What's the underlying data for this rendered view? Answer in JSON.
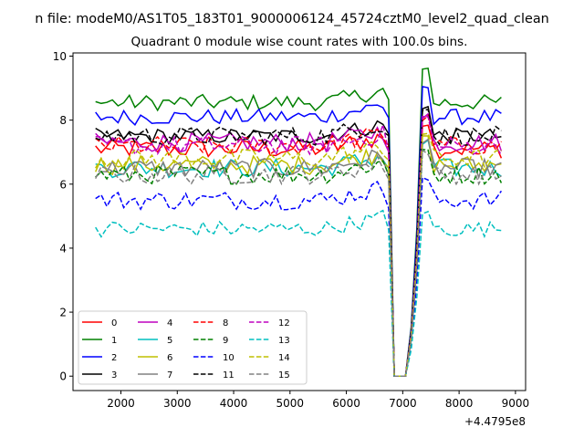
{
  "figure": {
    "suptitle": "n file: modeM0/AS1T05_183T01_9000006124_45724cztM0_level2_quad_clean",
    "background": "#ffffff"
  },
  "chart_data": {
    "type": "line",
    "title": "Quadrant 0 module wise count rates with 100.0s bins.",
    "xlabel": "",
    "ylabel": "",
    "x_offset_label": "+4.4795e8",
    "x_ticks": [
      2000,
      3000,
      4000,
      5000,
      6000,
      7000,
      8000,
      9000
    ],
    "x_tick_labels": [
      "2000",
      "3000",
      "4000",
      "5000",
      "6000",
      "7000",
      "8000",
      "9000"
    ],
    "y_ticks": [
      0,
      2,
      4,
      6,
      8,
      10
    ],
    "y_tick_labels": [
      "0",
      "2",
      "4",
      "6",
      "8",
      "10"
    ],
    "xlim": [
      1150,
      9180
    ],
    "ylim": [
      -0.45,
      10.1
    ],
    "x_start": 1550,
    "x_step": 100,
    "grid": false,
    "legend_position": "lower-left",
    "legend_columns": 4,
    "series": [
      {
        "name": "0",
        "color": "#ff0000",
        "dash": "solid",
        "level": 7.1,
        "noise": 0.3
      },
      {
        "name": "1",
        "color": "#008000",
        "dash": "solid",
        "level": 8.55,
        "noise": 0.25
      },
      {
        "name": "2",
        "color": "#0000ff",
        "dash": "solid",
        "level": 8.1,
        "noise": 0.25
      },
      {
        "name": "3",
        "color": "#000000",
        "dash": "solid",
        "level": 7.5,
        "noise": 0.25
      },
      {
        "name": "4",
        "color": "#bf00bf",
        "dash": "solid",
        "level": 7.3,
        "noise": 0.3
      },
      {
        "name": "5",
        "color": "#00bfbf",
        "dash": "solid",
        "level": 6.5,
        "noise": 0.3
      },
      {
        "name": "6",
        "color": "#bfbf00",
        "dash": "solid",
        "level": 6.6,
        "noise": 0.3
      },
      {
        "name": "7",
        "color": "#808080",
        "dash": "solid",
        "level": 6.5,
        "noise": 0.3
      },
      {
        "name": "8",
        "color": "#ff0000",
        "dash": "dashed",
        "level": 7.2,
        "noise": 0.3
      },
      {
        "name": "9",
        "color": "#008000",
        "dash": "dashed",
        "level": 6.3,
        "noise": 0.3
      },
      {
        "name": "10",
        "color": "#0000ff",
        "dash": "dashed",
        "level": 5.5,
        "noise": 0.3
      },
      {
        "name": "11",
        "color": "#000000",
        "dash": "dashed",
        "level": 7.5,
        "noise": 0.3
      },
      {
        "name": "12",
        "color": "#bf00bf",
        "dash": "dashed",
        "level": 7.2,
        "noise": 0.3
      },
      {
        "name": "13",
        "color": "#00bfbf",
        "dash": "dashed",
        "level": 4.6,
        "noise": 0.25
      },
      {
        "name": "14",
        "color": "#bfbf00",
        "dash": "dashed",
        "level": 6.8,
        "noise": 0.3
      },
      {
        "name": "15",
        "color": "#808080",
        "dash": "dashed",
        "level": 6.3,
        "noise": 0.3
      }
    ],
    "saa_gap": {
      "pre_drop_start": 6550,
      "drop_start": 6750,
      "zero_start": 6850,
      "zero_end": 7100,
      "recover_end": 7350,
      "recovery_peak_factor": 1.12
    }
  }
}
